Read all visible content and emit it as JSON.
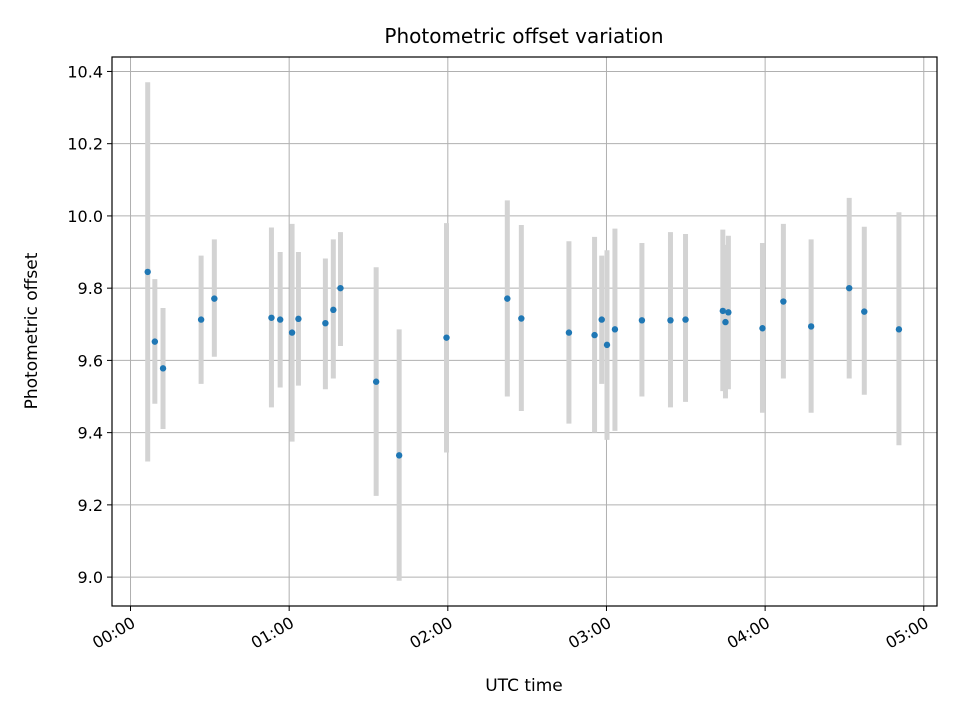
{
  "chart_data": {
    "type": "scatter",
    "title": "Photometric offset variation",
    "xlabel": "UTC time",
    "ylabel": "Photometric offset",
    "x_axis": "time (hh:mm UTC)",
    "xlim": [
      "23:53",
      "05:05"
    ],
    "ylim": [
      8.92,
      10.44
    ],
    "x_ticks": [
      "00:00",
      "01:00",
      "02:00",
      "03:00",
      "04:00",
      "05:00"
    ],
    "y_ticks": [
      "9.0",
      "9.2",
      "9.4",
      "9.6",
      "9.8",
      "10.0",
      "10.2",
      "10.4"
    ],
    "grid": true,
    "colors": {
      "point": "#1f77b4",
      "errorbar": "#d3d3d3",
      "grid": "#b0b0b0"
    },
    "points": [
      {
        "time": "00:06.5",
        "value": 9.845,
        "lower": 9.32,
        "upper": 10.37
      },
      {
        "time": "00:09.2",
        "value": 9.652,
        "lower": 9.48,
        "upper": 9.825
      },
      {
        "time": "00:12.3",
        "value": 9.578,
        "lower": 9.41,
        "upper": 9.745
      },
      {
        "time": "00:26.7",
        "value": 9.713,
        "lower": 9.535,
        "upper": 9.89
      },
      {
        "time": "00:31.7",
        "value": 9.771,
        "lower": 9.61,
        "upper": 9.935
      },
      {
        "time": "00:53.3",
        "value": 9.718,
        "lower": 9.47,
        "upper": 9.968
      },
      {
        "time": "00:56.6",
        "value": 9.713,
        "lower": 9.525,
        "upper": 9.9
      },
      {
        "time": "01:01.1",
        "value": 9.677,
        "lower": 9.375,
        "upper": 9.978
      },
      {
        "time": "01:03.5",
        "value": 9.715,
        "lower": 9.53,
        "upper": 9.9
      },
      {
        "time": "01:13.7",
        "value": 9.703,
        "lower": 9.52,
        "upper": 9.882
      },
      {
        "time": "01:16.7",
        "value": 9.74,
        "lower": 9.55,
        "upper": 9.935
      },
      {
        "time": "01:19.4",
        "value": 9.8,
        "lower": 9.64,
        "upper": 9.955
      },
      {
        "time": "01:32.9",
        "value": 9.541,
        "lower": 9.225,
        "upper": 9.858
      },
      {
        "time": "01:41.6",
        "value": 9.337,
        "lower": 8.99,
        "upper": 9.686
      },
      {
        "time": "01:59.5",
        "value": 9.663,
        "lower": 9.345,
        "upper": 9.98
      },
      {
        "time": "02:22.5",
        "value": 9.771,
        "lower": 9.5,
        "upper": 10.043
      },
      {
        "time": "02:27.8",
        "value": 9.716,
        "lower": 9.46,
        "upper": 9.975
      },
      {
        "time": "02:45.8",
        "value": 9.677,
        "lower": 9.425,
        "upper": 9.93
      },
      {
        "time": "02:55.5",
        "value": 9.67,
        "lower": 9.4,
        "upper": 9.942
      },
      {
        "time": "02:58.2",
        "value": 9.713,
        "lower": 9.535,
        "upper": 9.89
      },
      {
        "time": "03:00.2",
        "value": 9.643,
        "lower": 9.38,
        "upper": 9.905
      },
      {
        "time": "03:03.2",
        "value": 9.686,
        "lower": 9.405,
        "upper": 9.965
      },
      {
        "time": "03:13.4",
        "value": 9.711,
        "lower": 9.5,
        "upper": 9.925
      },
      {
        "time": "03:24.2",
        "value": 9.711,
        "lower": 9.47,
        "upper": 9.955
      },
      {
        "time": "03:29.9",
        "value": 9.713,
        "lower": 9.485,
        "upper": 9.95
      },
      {
        "time": "03:44.0",
        "value": 9.737,
        "lower": 9.515,
        "upper": 9.962
      },
      {
        "time": "03:45.0",
        "value": 9.706,
        "lower": 9.495,
        "upper": 9.92
      },
      {
        "time": "03:46.1",
        "value": 9.733,
        "lower": 9.52,
        "upper": 9.945
      },
      {
        "time": "03:59.0",
        "value": 9.689,
        "lower": 9.455,
        "upper": 9.925
      },
      {
        "time": "04:06.9",
        "value": 9.763,
        "lower": 9.55,
        "upper": 9.978
      },
      {
        "time": "04:17.4",
        "value": 9.694,
        "lower": 9.455,
        "upper": 9.935
      },
      {
        "time": "04:31.8",
        "value": 9.8,
        "lower": 9.55,
        "upper": 10.05
      },
      {
        "time": "04:37.5",
        "value": 9.735,
        "lower": 9.505,
        "upper": 9.97
      },
      {
        "time": "04:50.6",
        "value": 9.686,
        "lower": 9.365,
        "upper": 10.01
      }
    ]
  }
}
